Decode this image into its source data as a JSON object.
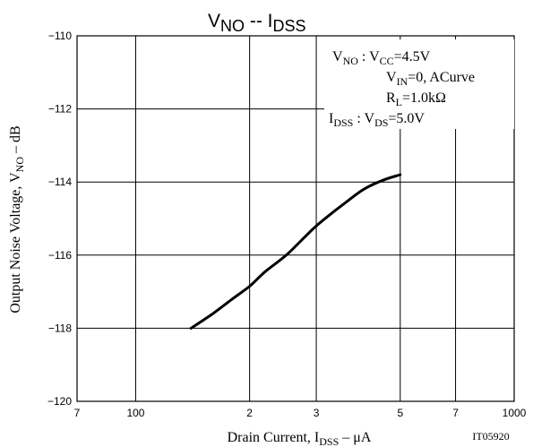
{
  "chart_data": {
    "type": "line",
    "title": {
      "main": "V",
      "sub": "NO",
      "sep": " -- ",
      "main2": "I",
      "sub2": "DSS"
    },
    "xlabel": {
      "pre": "Drain Current, I",
      "sub": "DSS",
      "post": " – μA"
    },
    "ylabel": {
      "pre": "Output Noise Voltage, V",
      "sub": "NO",
      "post": " – dB"
    },
    "x_scale": "log",
    "xlim": [
      70,
      1000
    ],
    "ylim": [
      -120,
      -110
    ],
    "x_ticks": [
      {
        "value": 70,
        "label": "7"
      },
      {
        "value": 100,
        "label": "100"
      },
      {
        "value": 200,
        "label": "2"
      },
      {
        "value": 300,
        "label": "3"
      },
      {
        "value": 500,
        "label": "5"
      },
      {
        "value": 700,
        "label": "7"
      },
      {
        "value": 1000,
        "label": "1000"
      }
    ],
    "y_ticks": [
      {
        "value": -110,
        "label": "−110"
      },
      {
        "value": -112,
        "label": "−112"
      },
      {
        "value": -114,
        "label": "−114"
      },
      {
        "value": -116,
        "label": "−116"
      },
      {
        "value": -118,
        "label": "−118"
      },
      {
        "value": -120,
        "label": "−120"
      }
    ],
    "grid": true,
    "series": [
      {
        "color": "#000000",
        "x": [
          140,
          160,
          180,
          200,
          220,
          250,
          280,
          300,
          330,
          360,
          400,
          450,
          500
        ],
        "y": [
          -118.0,
          -117.6,
          -117.2,
          -116.85,
          -116.45,
          -116.0,
          -115.5,
          -115.2,
          -114.85,
          -114.55,
          -114.2,
          -113.95,
          -113.8
        ]
      }
    ],
    "annotation": {
      "line1": {
        "a": "V",
        "a_sub": "NO",
        "b": " : V",
        "b_sub": "CC",
        "c": "=4.5V"
      },
      "line2": {
        "a": "V",
        "a_sub": "IN",
        "b": "=0, ACurve"
      },
      "line3": {
        "a": "R",
        "a_sub": "L",
        "b": "=1.0kΩ"
      },
      "line4": {
        "a": "I",
        "a_sub": "DSS",
        "b": " : V",
        "b_sub": "DS",
        "c": "=5.0V"
      }
    },
    "figure_code": "IT05920"
  }
}
